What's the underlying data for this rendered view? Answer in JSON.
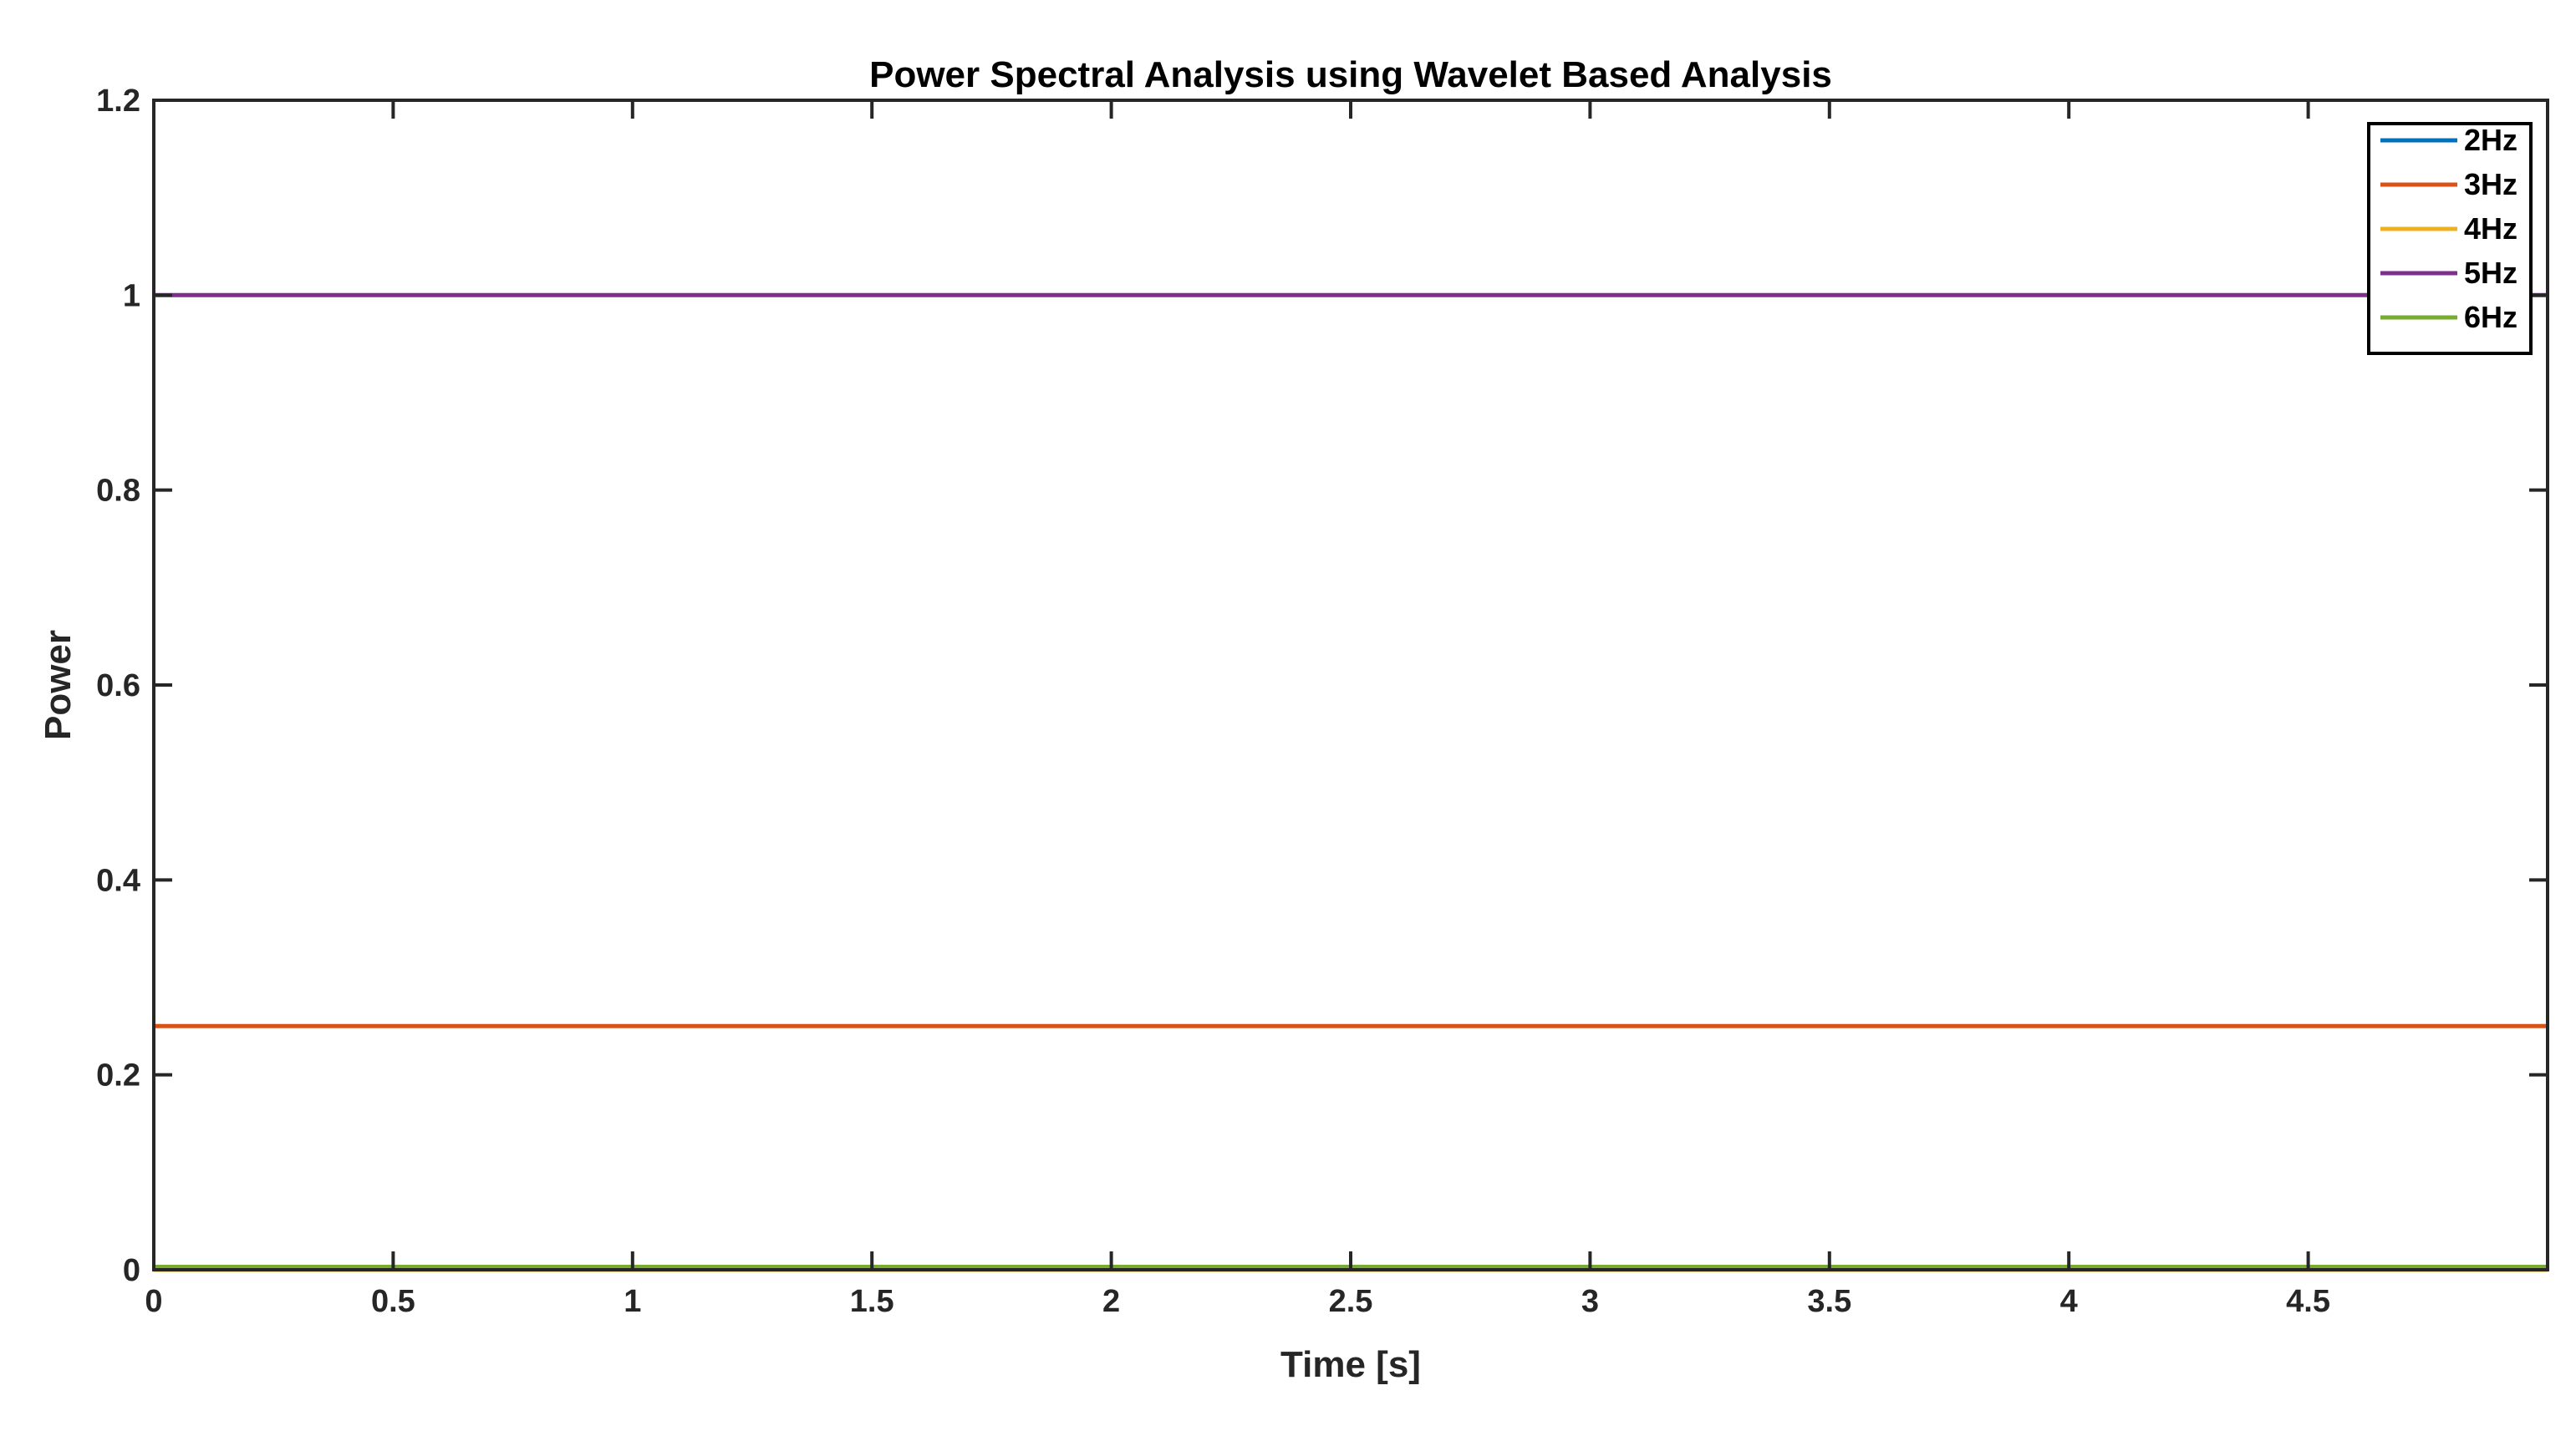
{
  "chart_data": {
    "type": "line",
    "title": "Power Spectral Analysis using Wavelet Based Analysis",
    "xlabel": "Time [s]",
    "ylabel": "Power",
    "xlim": [
      0,
      5
    ],
    "ylim": [
      0,
      1.2
    ],
    "x_ticks": [
      0,
      0.5,
      1,
      1.5,
      2,
      2.5,
      3,
      3.5,
      4,
      4.5
    ],
    "x_tick_labels": [
      "0",
      "0.5",
      "1",
      "1.5",
      "2",
      "2.5",
      "3",
      "3.5",
      "4",
      "4.5"
    ],
    "y_ticks": [
      0,
      0.2,
      0.4,
      0.6,
      0.8,
      1,
      1.2
    ],
    "y_tick_labels": [
      "0",
      "0.2",
      "0.4",
      "0.6",
      "0.8",
      "1",
      "1.2"
    ],
    "grid": false,
    "legend_position": "top-right",
    "x": [
      0,
      5
    ],
    "series": [
      {
        "name": "2Hz",
        "color": "#0072BD",
        "values": [
          0,
          0
        ]
      },
      {
        "name": "3Hz",
        "color": "#D95319",
        "values": [
          0.25,
          0.25
        ]
      },
      {
        "name": "4Hz",
        "color": "#EDB120",
        "values": [
          0,
          0
        ]
      },
      {
        "name": "5Hz",
        "color": "#7E2F8E",
        "values": [
          1,
          1
        ]
      },
      {
        "name": "6Hz",
        "color": "#77AC30",
        "values": [
          0.003,
          0.003
        ]
      }
    ]
  }
}
